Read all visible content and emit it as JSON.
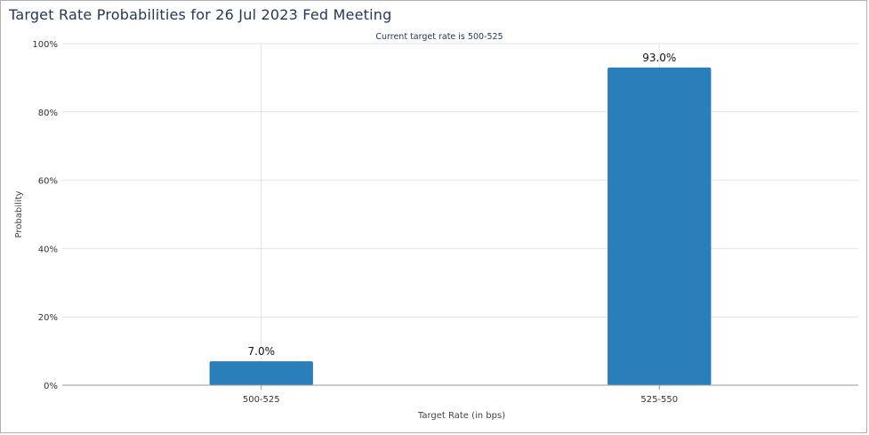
{
  "chart_data": {
    "type": "bar",
    "title": "Target Rate Probabilities for 26 Jul 2023 Fed Meeting",
    "subtitle": "Current target rate is 500-525",
    "xlabel": "Target Rate (in bps)",
    "ylabel": "Probability",
    "categories": [
      "500-525",
      "525-550"
    ],
    "values": [
      7.0,
      93.0
    ],
    "data_labels": [
      "7.0%",
      "93.0%"
    ],
    "ylim": [
      0,
      100
    ],
    "yticks": [
      0,
      20,
      40,
      60,
      80,
      100
    ],
    "ytick_labels": [
      "0%",
      "20%",
      "40%",
      "60%",
      "80%",
      "100%"
    ],
    "grid": true,
    "bar_color": "#2a7fba"
  }
}
